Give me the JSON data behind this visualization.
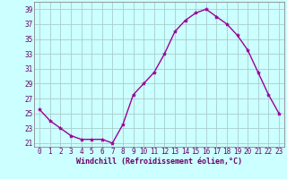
{
  "x": [
    0,
    1,
    2,
    3,
    4,
    5,
    6,
    7,
    8,
    9,
    10,
    11,
    12,
    13,
    14,
    15,
    16,
    17,
    18,
    19,
    20,
    21,
    22,
    23
  ],
  "y": [
    25.5,
    24.0,
    23.0,
    22.0,
    21.5,
    21.5,
    21.5,
    21.0,
    23.5,
    27.5,
    29.0,
    30.5,
    33.0,
    36.0,
    37.5,
    38.5,
    39.0,
    38.0,
    37.0,
    35.5,
    33.5,
    30.5,
    27.5,
    25.0
  ],
  "line_color": "#990099",
  "marker": "*",
  "marker_size": 3.0,
  "bg_color": "#ccffff",
  "grid_color": "#aacccc",
  "xlabel": "Windchill (Refroidissement éolien,°C)",
  "xlabel_color": "#660066",
  "xlabel_fontsize": 6.0,
  "xlim": [
    -0.5,
    23.5
  ],
  "ylim": [
    20.5,
    40.0
  ],
  "yticks": [
    21,
    23,
    25,
    27,
    29,
    31,
    33,
    35,
    37,
    39
  ],
  "xticks": [
    0,
    1,
    2,
    3,
    4,
    5,
    6,
    7,
    8,
    9,
    10,
    11,
    12,
    13,
    14,
    15,
    16,
    17,
    18,
    19,
    20,
    21,
    22,
    23
  ],
  "tick_color": "#660066",
  "tick_fontsize": 5.5,
  "spine_color": "#888888",
  "line_width": 1.0
}
